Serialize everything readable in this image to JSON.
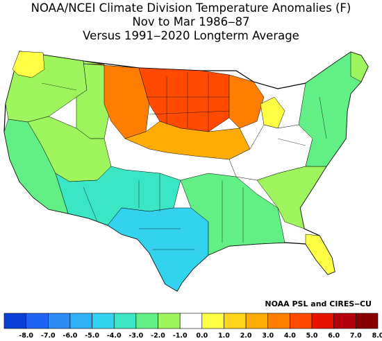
{
  "title": {
    "line1": "NOAA/NCEI Climate Division Temperature Anomalies (F)",
    "line2": "Nov to Mar 1986‒87",
    "line3": "Versus 1991‒2020 Longterm Average"
  },
  "credit": "NOAA PSL and CIRES‒CU",
  "legend": {
    "ticks": [
      "-8.0",
      "-7.0",
      "-6.0",
      "-5.0",
      "-4.0",
      "-3.0",
      "-2.0",
      "-1.0",
      "0.0",
      "1.0",
      "2.0",
      "3.0",
      "4.0",
      "5.0",
      "6.0",
      "7.0",
      "8.0"
    ],
    "colors": [
      "#0a3fd6",
      "#1f63f2",
      "#2a8bf5",
      "#2fb1f7",
      "#33d3ef",
      "#3ae6c4",
      "#61ef86",
      "#9ef55d",
      "#ffffff",
      "#ffff45",
      "#ffd21c",
      "#ffad06",
      "#ff7d00",
      "#ff4a00",
      "#e81400",
      "#b5000c",
      "#8a0000"
    ]
  },
  "regions": [
    {
      "name": "northwest",
      "value": -1.5
    },
    {
      "name": "california-coast",
      "value": -2.0
    },
    {
      "name": "great-basin",
      "value": -2.0
    },
    {
      "name": "northern-rockies",
      "value": -1.0
    },
    {
      "name": "montana-northern-plains",
      "value": 4.0
    },
    {
      "name": "dakotas-minnesota",
      "value": 5.5
    },
    {
      "name": "upper-midwest",
      "value": 4.5
    },
    {
      "name": "central-plains",
      "value": 2.5
    },
    {
      "name": "southwest",
      "value": -3.0
    },
    {
      "name": "texas",
      "value": -3.5
    },
    {
      "name": "gulf-coast",
      "value": -2.0
    },
    {
      "name": "ohio-valley",
      "value": 0.0
    },
    {
      "name": "southeast",
      "value": -1.0
    },
    {
      "name": "northeast",
      "value": -1.5
    },
    {
      "name": "florida-peninsula",
      "value": 1.5
    },
    {
      "name": "washington-coast",
      "value": 1.5
    },
    {
      "name": "michigan-lower",
      "value": 1.5
    },
    {
      "name": "maine",
      "value": -1.5
    }
  ]
}
